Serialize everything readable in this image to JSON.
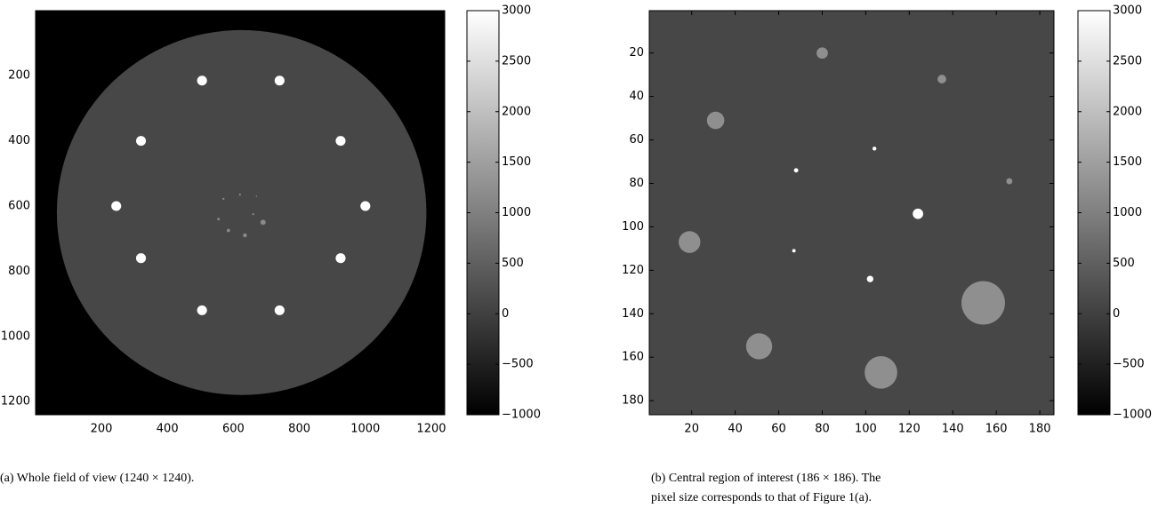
{
  "panels": [
    {
      "xlim": [
        0.5,
        1240.5
      ],
      "ylim": [
        0.5,
        1240.5
      ],
      "xticks": [
        200,
        400,
        600,
        800,
        1000,
        1200
      ],
      "yticks": [
        200,
        400,
        600,
        800,
        1000,
        1200
      ],
      "colorbar": {
        "lim": [
          -1000,
          3000
        ],
        "ticks": [
          {
            "value": -1000,
            "label": "−1000"
          },
          {
            "value": -500,
            "label": "−500"
          },
          0,
          500,
          1000,
          1500,
          2000,
          2500,
          3000
        ]
      },
      "caption_lines": [
        "(a)  Whole field of view (1240 × 1240)."
      ]
    },
    {
      "xlim": [
        0.5,
        186.5
      ],
      "ylim": [
        0.5,
        186.5
      ],
      "xticks": [
        20,
        40,
        60,
        80,
        100,
        120,
        140,
        160,
        180
      ],
      "yticks": [
        20,
        40,
        60,
        80,
        100,
        120,
        140,
        160,
        180
      ],
      "colorbar": {
        "lim": [
          -1000,
          3000
        ],
        "ticks": [
          {
            "value": -1000,
            "label": "−1000"
          },
          {
            "value": -500,
            "label": "−500"
          },
          0,
          500,
          1000,
          1500,
          2000,
          2500,
          3000
        ]
      },
      "caption_lines": [
        "(b)  Central region of interest (186 × 186).  The",
        "pixel size corresponds to that of Figure 1(a)."
      ]
    }
  ]
}
